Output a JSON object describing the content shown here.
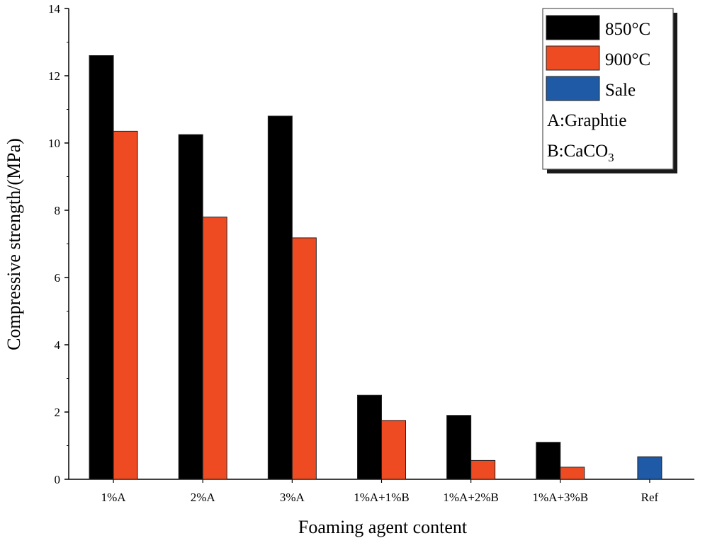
{
  "chart_data": {
    "type": "bar",
    "categories": [
      "1%A",
      "2%A",
      "3%A",
      "1%A+1%B",
      "1%A+2%B",
      "1%A+3%B",
      "Ref"
    ],
    "series": [
      {
        "name": "850°C",
        "color": "#000000",
        "values": [
          12.6,
          10.25,
          10.8,
          2.5,
          1.9,
          1.1,
          null
        ]
      },
      {
        "name": "900°C",
        "color": "#ee4b22",
        "values": [
          10.35,
          7.8,
          7.18,
          1.75,
          0.56,
          0.36,
          null
        ]
      },
      {
        "name": "Sale",
        "color": "#1f5aa6",
        "values": [
          null,
          null,
          null,
          null,
          null,
          null,
          0.67
        ]
      }
    ],
    "legend_notes": [
      {
        "prefix": "A:Graphtie",
        "sub": "",
        "suffix": ""
      },
      {
        "prefix": "B:CaCO",
        "sub": "3",
        "suffix": ""
      }
    ],
    "xlabel": "Foaming agent content",
    "ylabel": "Compressive strength/(MPa)",
    "ylim": [
      0,
      14
    ],
    "yticks": [
      0,
      2,
      4,
      6,
      8,
      10,
      12,
      14
    ],
    "legend_position": "top-right",
    "grid": false
  }
}
